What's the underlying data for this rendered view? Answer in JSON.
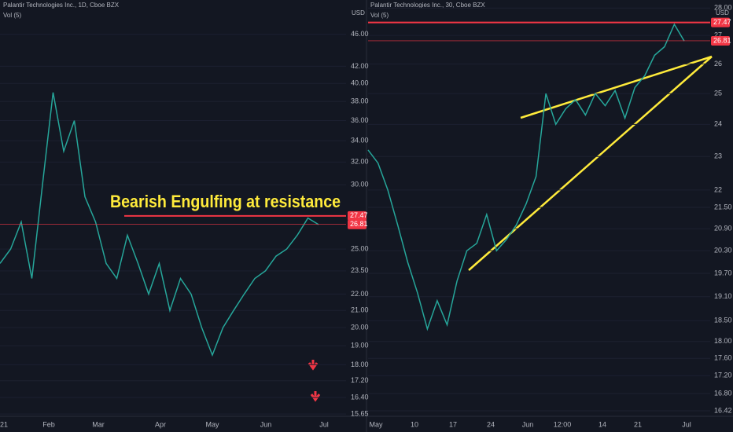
{
  "chart_data": [
    {
      "type": "line",
      "title": "Palantir Technologies Inc., 1D, Cboe BZX",
      "subtitle": "Vol (5)",
      "currency": "USD",
      "annotation": "Bearish Engulfing at resistance",
      "log_scale": true,
      "color": "#26a69a",
      "ylim": [
        15.55,
        50.7
      ],
      "yticks": [
        {
          "value": 46,
          "label": "46.00"
        },
        {
          "value": 42,
          "label": "42.00"
        },
        {
          "value": 40,
          "label": "40.00"
        },
        {
          "value": 38,
          "label": "38.00"
        },
        {
          "value": 36,
          "label": "36.00"
        },
        {
          "value": 34,
          "label": "34.00"
        },
        {
          "value": 32,
          "label": "32.00"
        },
        {
          "value": 30,
          "label": "30.00"
        },
        {
          "value": 25,
          "label": "25.00"
        },
        {
          "value": 23.5,
          "label": "23.50"
        },
        {
          "value": 22,
          "label": "22.00"
        },
        {
          "value": 21,
          "label": "21.00"
        },
        {
          "value": 20,
          "label": "20.00"
        },
        {
          "value": 19,
          "label": "19.00"
        },
        {
          "value": 18,
          "label": "18.00"
        },
        {
          "value": 17.2,
          "label": "17.20"
        },
        {
          "value": 16.4,
          "label": "16.40"
        },
        {
          "value": 15.65,
          "label": "15.65"
        }
      ],
      "price_tags": [
        27.47,
        26.81
      ],
      "tag_color": "#f23645",
      "x_labels": [
        "21",
        "Feb",
        "Mar",
        "Apr",
        "May",
        "Jun",
        "Jul"
      ],
      "values": [
        24,
        25,
        27,
        23,
        30,
        39,
        33,
        36,
        29,
        27,
        24,
        23,
        26,
        24,
        22,
        24,
        21,
        23,
        22,
        20,
        18.5,
        20,
        21,
        22,
        23,
        23.5,
        24.5,
        25,
        26,
        27.3,
        26.8
      ]
    },
    {
      "type": "line",
      "title": "Palantir Technologies Inc., 30, Cboe BZX",
      "subtitle": "Vol (5)",
      "currency": "USD",
      "log_scale": true,
      "color": "#26a69a",
      "ylim": [
        16.3,
        28.3
      ],
      "yticks": [
        {
          "value": 28,
          "label": "28.00"
        },
        27,
        26,
        25,
        24,
        23,
        22,
        {
          "value": 21.5,
          "label": "21.50"
        },
        {
          "value": 20.9,
          "label": "20.90"
        },
        {
          "value": 20.3,
          "label": "20.30"
        },
        {
          "value": 19.7,
          "label": "19.70"
        },
        {
          "value": 19.1,
          "label": "19.10"
        },
        {
          "value": 18.5,
          "label": "18.50"
        },
        {
          "value": 18,
          "label": "18.00"
        },
        {
          "value": 17.6,
          "label": "17.60"
        },
        {
          "value": 17.2,
          "label": "17.20"
        },
        {
          "value": 16.8,
          "label": "16.80"
        },
        16.42
      ],
      "price_tags": [
        27.47,
        26.81
      ],
      "tag_color": "#f23645",
      "x_labels": [
        "May",
        "10",
        "17",
        "24",
        "Jun",
        "12:00",
        "14",
        "21",
        "Jul"
      ],
      "values": [
        23.2,
        22.8,
        22,
        21,
        20,
        19.2,
        18.3,
        19,
        18.4,
        19.5,
        20.3,
        20.5,
        21.3,
        20.3,
        20.6,
        21,
        21.6,
        22.4,
        25,
        24,
        24.5,
        24.8,
        24.3,
        25,
        24.6,
        25.1,
        24.2,
        25.2,
        25.6,
        26.3,
        26.6,
        27.4,
        26.8
      ]
    }
  ]
}
